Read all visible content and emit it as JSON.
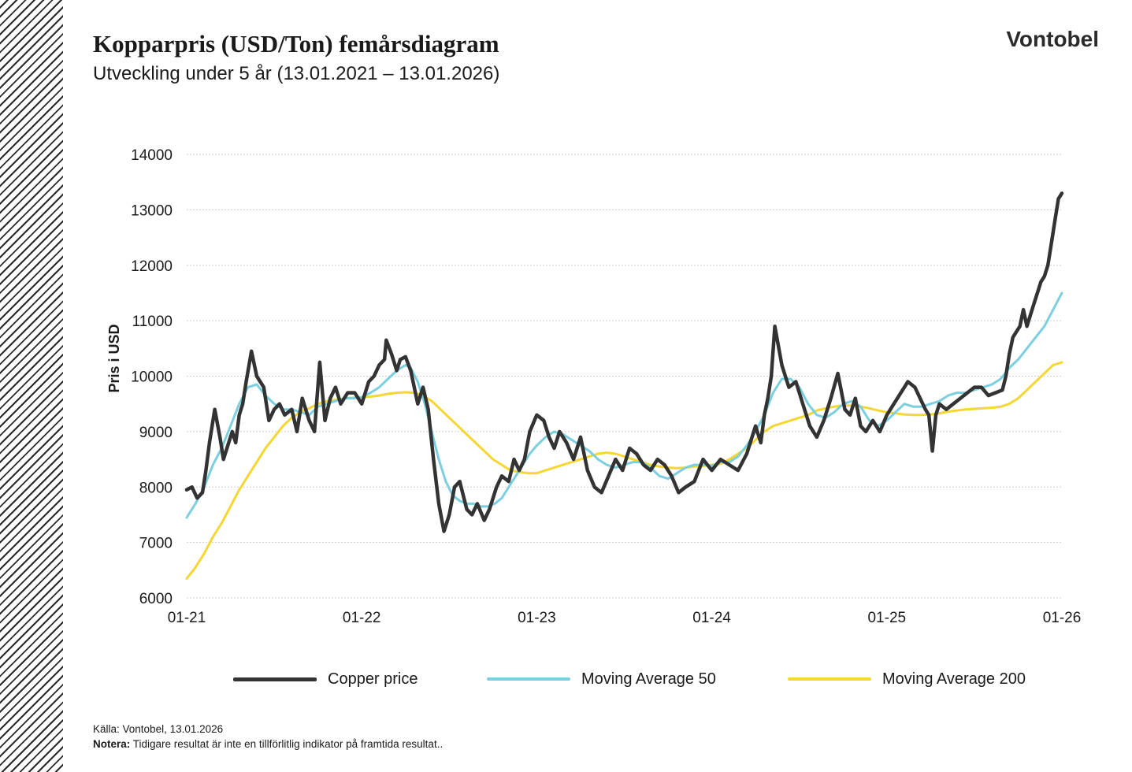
{
  "header": {
    "title": "Kopparpris (USD/Ton) femårsdiagram",
    "subtitle": "Utveckling under 5 år (13.01.2021 – 13.01.2026)",
    "brand": "Vontobel"
  },
  "footer": {
    "source": "Källa: Vontobel, 13.01.2026",
    "note_label": "Notera:",
    "note_text": " Tidigare resultat är inte en tillförlitlig indikator på framtida resultat.."
  },
  "colors": {
    "copper": "#333333",
    "ma50": "#7ccfdf",
    "ma200": "#f5d633",
    "grid": "#cfcfcf",
    "hatch": "#2a2a2a"
  },
  "chart_data": {
    "type": "line",
    "title": "Kopparpris (USD/Ton) femårsdiagram",
    "ylabel": "Pris i USD",
    "xlabel": "",
    "ylim": [
      6000,
      14000
    ],
    "xlim": [
      2021.0,
      2026.0
    ],
    "yticks": [
      "6000",
      "7000",
      "8000",
      "9000",
      "10000",
      "11000",
      "12000",
      "13000",
      "14000"
    ],
    "xticks": [
      {
        "x": 2021.0,
        "label": "01-21"
      },
      {
        "x": 2022.0,
        "label": "01-22"
      },
      {
        "x": 2023.0,
        "label": "01-23"
      },
      {
        "x": 2024.0,
        "label": "01-24"
      },
      {
        "x": 2025.0,
        "label": "01-25"
      },
      {
        "x": 2026.0,
        "label": "01-26"
      }
    ],
    "grid": true,
    "legend_position": "bottom",
    "series": [
      {
        "name": "Copper price",
        "color": "#333333",
        "x": [
          2021.0,
          2021.03,
          2021.06,
          2021.09,
          2021.11,
          2021.13,
          2021.16,
          2021.19,
          2021.21,
          2021.24,
          2021.26,
          2021.28,
          2021.3,
          2021.32,
          2021.34,
          2021.37,
          2021.4,
          2021.44,
          2021.47,
          2021.5,
          2021.53,
          2021.56,
          2021.6,
          2021.63,
          2021.66,
          2021.7,
          2021.73,
          2021.76,
          2021.79,
          2021.82,
          2021.85,
          2021.88,
          2021.92,
          2021.96,
          2022.0,
          2022.04,
          2022.07,
          2022.1,
          2022.13,
          2022.14,
          2022.17,
          2022.2,
          2022.22,
          2022.25,
          2022.28,
          2022.32,
          2022.35,
          2022.38,
          2022.41,
          2022.44,
          2022.47,
          2022.5,
          2022.53,
          2022.56,
          2022.6,
          2022.63,
          2022.66,
          2022.7,
          2022.73,
          2022.77,
          2022.8,
          2022.84,
          2022.87,
          2022.9,
          2022.93,
          2022.96,
          2023.0,
          2023.04,
          2023.07,
          2023.1,
          2023.13,
          2023.17,
          2023.21,
          2023.25,
          2023.29,
          2023.33,
          2023.37,
          2023.41,
          2023.45,
          2023.49,
          2023.53,
          2023.57,
          2023.61,
          2023.65,
          2023.69,
          2023.73,
          2023.77,
          2023.81,
          2023.85,
          2023.9,
          2023.95,
          2024.0,
          2024.05,
          2024.1,
          2024.15,
          2024.2,
          2024.25,
          2024.28,
          2024.3,
          2024.32,
          2024.34,
          2024.36,
          2024.4,
          2024.44,
          2024.48,
          2024.52,
          2024.56,
          2024.6,
          2024.64,
          2024.68,
          2024.72,
          2024.76,
          2024.79,
          2024.82,
          2024.85,
          2024.88,
          2024.92,
          2024.96,
          2025.0,
          2025.04,
          2025.08,
          2025.12,
          2025.16,
          2025.19,
          2025.22,
          2025.24,
          2025.26,
          2025.28,
          2025.3,
          2025.34,
          2025.38,
          2025.42,
          2025.46,
          2025.5,
          2025.54,
          2025.58,
          2025.62,
          2025.66,
          2025.68,
          2025.7,
          2025.72,
          2025.74,
          2025.76,
          2025.78,
          2025.8,
          2025.82,
          2025.84,
          2025.86,
          2025.88,
          2025.9,
          2025.92,
          2025.94,
          2025.96,
          2025.98,
          2026.0
        ],
        "y": [
          7950,
          8000,
          7800,
          7900,
          8300,
          8800,
          9400,
          8900,
          8500,
          8800,
          9000,
          8800,
          9300,
          9500,
          9900,
          10450,
          10000,
          9800,
          9200,
          9400,
          9500,
          9300,
          9400,
          9000,
          9600,
          9200,
          9000,
          10250,
          9200,
          9600,
          9800,
          9500,
          9700,
          9700,
          9500,
          9900,
          10000,
          10200,
          10300,
          10650,
          10400,
          10100,
          10300,
          10350,
          10100,
          9500,
          9800,
          9400,
          8500,
          7700,
          7200,
          7500,
          8000,
          8100,
          7600,
          7500,
          7700,
          7400,
          7600,
          8000,
          8200,
          8100,
          8500,
          8300,
          8500,
          9000,
          9300,
          9200,
          8900,
          8700,
          9000,
          8800,
          8500,
          8900,
          8300,
          8000,
          7900,
          8200,
          8500,
          8300,
          8700,
          8600,
          8400,
          8300,
          8500,
          8400,
          8200,
          7900,
          8000,
          8100,
          8500,
          8300,
          8500,
          8400,
          8300,
          8600,
          9100,
          8800,
          9300,
          9600,
          10000,
          10900,
          10200,
          9800,
          9900,
          9500,
          9100,
          8900,
          9200,
          9600,
          10050,
          9400,
          9300,
          9600,
          9100,
          9000,
          9200,
          9000,
          9300,
          9500,
          9700,
          9900,
          9800,
          9600,
          9400,
          9300,
          8650,
          9300,
          9500,
          9400,
          9500,
          9600,
          9700,
          9800,
          9800,
          9650,
          9700,
          9750,
          10000,
          10400,
          10700,
          10800,
          10900,
          11200,
          10900,
          11100,
          11300,
          11500,
          11700,
          11800,
          12000,
          12400,
          12800,
          13200,
          13300
        ]
      },
      {
        "name": "Moving Average 50",
        "color": "#7ccfdf",
        "x": [
          2021.0,
          2021.05,
          2021.1,
          2021.15,
          2021.2,
          2021.25,
          2021.3,
          2021.35,
          2021.4,
          2021.45,
          2021.5,
          2021.55,
          2021.6,
          2021.65,
          2021.7,
          2021.75,
          2021.8,
          2021.85,
          2021.9,
          2021.95,
          2022.0,
          2022.05,
          2022.1,
          2022.15,
          2022.2,
          2022.25,
          2022.28,
          2022.32,
          2022.36,
          2022.4,
          2022.44,
          2022.48,
          2022.52,
          2022.56,
          2022.6,
          2022.64,
          2022.68,
          2022.72,
          2022.76,
          2022.8,
          2022.84,
          2022.88,
          2022.92,
          2022.96,
          2023.0,
          2023.05,
          2023.1,
          2023.15,
          2023.2,
          2023.25,
          2023.3,
          2023.35,
          2023.4,
          2023.45,
          2023.5,
          2023.55,
          2023.6,
          2023.65,
          2023.7,
          2023.75,
          2023.8,
          2023.85,
          2023.9,
          2023.95,
          2024.0,
          2024.05,
          2024.1,
          2024.15,
          2024.2,
          2024.25,
          2024.3,
          2024.35,
          2024.4,
          2024.45,
          2024.5,
          2024.55,
          2024.6,
          2024.65,
          2024.7,
          2024.75,
          2024.8,
          2024.85,
          2024.9,
          2024.95,
          2025.0,
          2025.05,
          2025.1,
          2025.15,
          2025.2,
          2025.25,
          2025.3,
          2025.35,
          2025.4,
          2025.45,
          2025.5,
          2025.55,
          2025.6,
          2025.65,
          2025.7,
          2025.75,
          2025.8,
          2025.85,
          2025.9,
          2025.95,
          2026.0
        ],
        "y": [
          7450,
          7700,
          8000,
          8400,
          8700,
          9100,
          9500,
          9800,
          9850,
          9650,
          9500,
          9400,
          9400,
          9350,
          9300,
          9450,
          9500,
          9550,
          9600,
          9600,
          9620,
          9700,
          9800,
          9950,
          10100,
          10200,
          10150,
          9900,
          9500,
          9000,
          8500,
          8100,
          7850,
          7750,
          7700,
          7700,
          7650,
          7650,
          7700,
          7800,
          8000,
          8200,
          8400,
          8600,
          8750,
          8900,
          9000,
          8950,
          8850,
          8750,
          8650,
          8500,
          8400,
          8350,
          8400,
          8450,
          8450,
          8350,
          8200,
          8150,
          8250,
          8350,
          8400,
          8400,
          8380,
          8450,
          8450,
          8550,
          8750,
          9000,
          9300,
          9700,
          9950,
          9950,
          9800,
          9500,
          9300,
          9250,
          9350,
          9500,
          9550,
          9450,
          9200,
          9100,
          9200,
          9350,
          9500,
          9450,
          9450,
          9500,
          9550,
          9650,
          9700,
          9700,
          9750,
          9800,
          9850,
          9950,
          10150,
          10300,
          10500,
          10700,
          10900,
          11200,
          11500
        ]
      },
      {
        "name": "Moving Average 200",
        "color": "#f5d633",
        "x": [
          2021.0,
          2021.05,
          2021.1,
          2021.15,
          2021.2,
          2021.25,
          2021.3,
          2021.35,
          2021.4,
          2021.45,
          2021.5,
          2021.55,
          2021.6,
          2021.65,
          2021.7,
          2021.75,
          2021.8,
          2021.85,
          2021.9,
          2021.95,
          2022.0,
          2022.05,
          2022.1,
          2022.15,
          2022.2,
          2022.25,
          2022.3,
          2022.35,
          2022.4,
          2022.45,
          2022.5,
          2022.55,
          2022.6,
          2022.65,
          2022.7,
          2022.75,
          2022.8,
          2022.85,
          2022.9,
          2022.95,
          2023.0,
          2023.05,
          2023.1,
          2023.15,
          2023.2,
          2023.25,
          2023.3,
          2023.35,
          2023.4,
          2023.45,
          2023.5,
          2023.55,
          2023.6,
          2023.65,
          2023.7,
          2023.75,
          2023.8,
          2023.85,
          2023.9,
          2023.95,
          2024.0,
          2024.05,
          2024.1,
          2024.15,
          2024.2,
          2024.25,
          2024.3,
          2024.35,
          2024.4,
          2024.45,
          2024.5,
          2024.55,
          2024.6,
          2024.65,
          2024.7,
          2024.75,
          2024.8,
          2024.85,
          2024.9,
          2024.95,
          2025.0,
          2025.05,
          2025.1,
          2025.15,
          2025.2,
          2025.25,
          2025.3,
          2025.35,
          2025.4,
          2025.45,
          2025.5,
          2025.55,
          2025.6,
          2025.65,
          2025.7,
          2025.75,
          2025.8,
          2025.85,
          2025.9,
          2025.95,
          2026.0
        ],
        "y": [
          6350,
          6550,
          6800,
          7100,
          7350,
          7650,
          7950,
          8200,
          8450,
          8700,
          8900,
          9100,
          9250,
          9350,
          9420,
          9500,
          9550,
          9570,
          9600,
          9610,
          9620,
          9630,
          9650,
          9680,
          9700,
          9710,
          9700,
          9650,
          9550,
          9400,
          9250,
          9100,
          8950,
          8800,
          8650,
          8500,
          8400,
          8300,
          8270,
          8250,
          8250,
          8300,
          8350,
          8400,
          8450,
          8500,
          8550,
          8600,
          8620,
          8600,
          8550,
          8500,
          8450,
          8400,
          8370,
          8350,
          8340,
          8350,
          8370,
          8380,
          8400,
          8420,
          8500,
          8600,
          8700,
          8850,
          9000,
          9100,
          9150,
          9200,
          9250,
          9300,
          9380,
          9420,
          9450,
          9470,
          9470,
          9450,
          9420,
          9380,
          9350,
          9330,
          9310,
          9300,
          9300,
          9310,
          9330,
          9360,
          9380,
          9400,
          9410,
          9420,
          9430,
          9450,
          9500,
          9600,
          9750,
          9900,
          10050,
          10200,
          10250
        ]
      }
    ]
  }
}
